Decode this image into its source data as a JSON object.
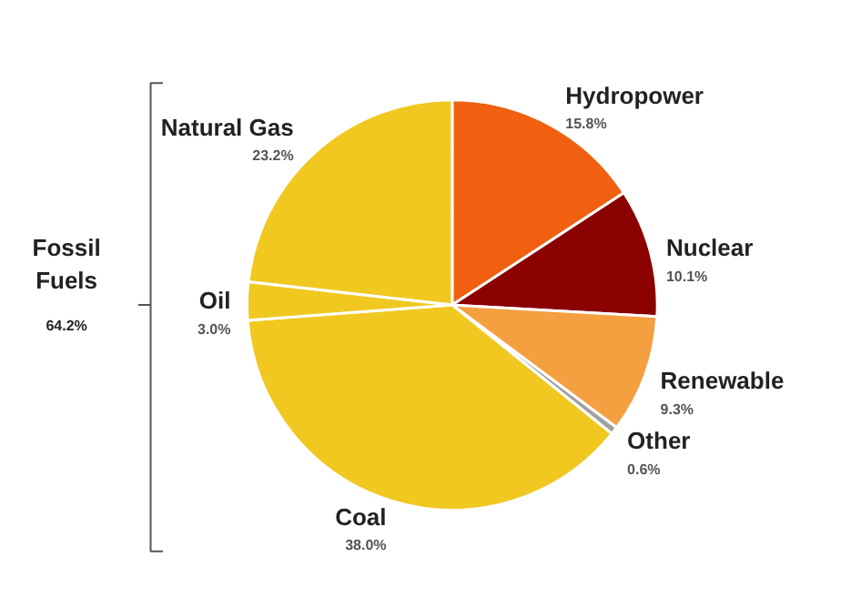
{
  "chart_data": {
    "type": "pie",
    "categories": [
      "Hydropower",
      "Nuclear",
      "Renewable",
      "Other",
      "Coal",
      "Oil",
      "Natural Gas"
    ],
    "values": [
      15.8,
      10.1,
      9.3,
      0.6,
      38.0,
      3.0,
      23.2
    ],
    "value_labels": [
      "15.8%",
      "10.1%",
      "9.3%",
      "0.6%",
      "38.0%",
      "3.0%",
      "23.2%"
    ],
    "colors": [
      "#f06010",
      "#8b0000",
      "#f4a040",
      "#a0a0a0",
      "#f0c820",
      "#f0c820",
      "#f0c820"
    ],
    "annotations": [
      "Fossil Fuels",
      "64.2%"
    ]
  }
}
